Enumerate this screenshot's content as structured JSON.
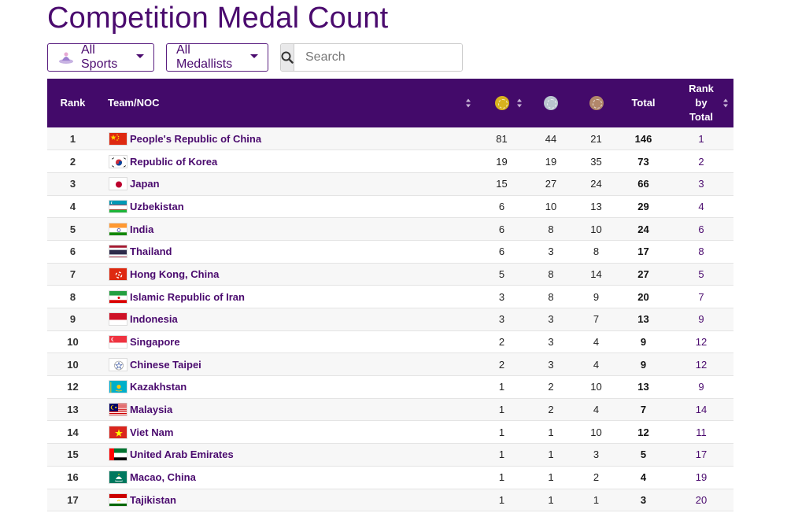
{
  "page_title": "Competition Medal Count",
  "filters": {
    "sports_label": "All Sports",
    "medallists_label": "All Medallists"
  },
  "search": {
    "placeholder": "Search",
    "value": ""
  },
  "table": {
    "headers": {
      "rank": "Rank",
      "team": "Team/NOC",
      "total": "Total",
      "rank_by_total": [
        "Rank",
        "by",
        "Total"
      ]
    },
    "medal_colors": {
      "gold": "#d8b21e",
      "silver": "#b9c6cf",
      "bronze": "#b2876a"
    },
    "rows": [
      {
        "rank": "1",
        "team": "People's Republic of China",
        "flag": "china-flag",
        "gold": "81",
        "silver": "44",
        "bronze": "21",
        "total": "146",
        "rank_by_total": "1"
      },
      {
        "rank": "2",
        "team": "Republic of Korea",
        "flag": "korea-flag",
        "gold": "19",
        "silver": "19",
        "bronze": "35",
        "total": "73",
        "rank_by_total": "2"
      },
      {
        "rank": "3",
        "team": "Japan",
        "flag": "japan-flag",
        "gold": "15",
        "silver": "27",
        "bronze": "24",
        "total": "66",
        "rank_by_total": "3"
      },
      {
        "rank": "4",
        "team": "Uzbekistan",
        "flag": "uzbekistan-flag",
        "gold": "6",
        "silver": "10",
        "bronze": "13",
        "total": "29",
        "rank_by_total": "4"
      },
      {
        "rank": "5",
        "team": "India",
        "flag": "india-flag",
        "gold": "6",
        "silver": "8",
        "bronze": "10",
        "total": "24",
        "rank_by_total": "6"
      },
      {
        "rank": "6",
        "team": "Thailand",
        "flag": "thailand-flag",
        "gold": "6",
        "silver": "3",
        "bronze": "8",
        "total": "17",
        "rank_by_total": "8"
      },
      {
        "rank": "7",
        "team": "Hong Kong, China",
        "flag": "hong-kong-flag",
        "gold": "5",
        "silver": "8",
        "bronze": "14",
        "total": "27",
        "rank_by_total": "5"
      },
      {
        "rank": "8",
        "team": "Islamic Republic of Iran",
        "flag": "iran-flag",
        "gold": "3",
        "silver": "8",
        "bronze": "9",
        "total": "20",
        "rank_by_total": "7"
      },
      {
        "rank": "9",
        "team": "Indonesia",
        "flag": "indonesia-flag",
        "gold": "3",
        "silver": "3",
        "bronze": "7",
        "total": "13",
        "rank_by_total": "9"
      },
      {
        "rank": "10",
        "team": "Singapore",
        "flag": "singapore-flag",
        "gold": "2",
        "silver": "3",
        "bronze": "4",
        "total": "9",
        "rank_by_total": "12"
      },
      {
        "rank": "10",
        "team": "Chinese Taipei",
        "flag": "chinese-taipei-flag",
        "gold": "2",
        "silver": "3",
        "bronze": "4",
        "total": "9",
        "rank_by_total": "12"
      },
      {
        "rank": "12",
        "team": "Kazakhstan",
        "flag": "kazakhstan-flag",
        "gold": "1",
        "silver": "2",
        "bronze": "10",
        "total": "13",
        "rank_by_total": "9"
      },
      {
        "rank": "13",
        "team": "Malaysia",
        "flag": "malaysia-flag",
        "gold": "1",
        "silver": "2",
        "bronze": "4",
        "total": "7",
        "rank_by_total": "14"
      },
      {
        "rank": "14",
        "team": "Viet Nam",
        "flag": "viet-nam-flag",
        "gold": "1",
        "silver": "1",
        "bronze": "10",
        "total": "12",
        "rank_by_total": "11"
      },
      {
        "rank": "15",
        "team": "United Arab Emirates",
        "flag": "uae-flag",
        "gold": "1",
        "silver": "1",
        "bronze": "3",
        "total": "5",
        "rank_by_total": "17"
      },
      {
        "rank": "16",
        "team": "Macao, China",
        "flag": "macao-flag",
        "gold": "1",
        "silver": "1",
        "bronze": "2",
        "total": "4",
        "rank_by_total": "19"
      },
      {
        "rank": "17",
        "team": "Tajikistan",
        "flag": "tajikistan-flag",
        "gold": "1",
        "silver": "1",
        "bronze": "1",
        "total": "3",
        "rank_by_total": "20"
      }
    ]
  }
}
